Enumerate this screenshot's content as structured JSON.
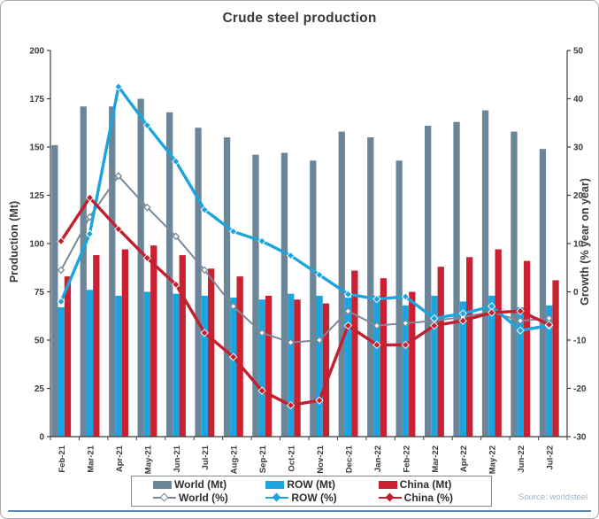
{
  "chart_data": {
    "type": "combo (bar + line)",
    "title": "Crude steel production",
    "source": "Source: worldsteel",
    "grid": false,
    "legend_position": "bottom",
    "categories": [
      "Feb-21",
      "Mar-21",
      "Apr-21",
      "May-21",
      "Jun-21",
      "Jul-21",
      "Aug-21",
      "Sep-21",
      "Oct-21",
      "Nov-21",
      "Dec-21",
      "Jan-22",
      "Feb-22",
      "Mar-22",
      "Apr-22",
      "May-22",
      "Jun-22",
      "Jul-22"
    ],
    "left_axis": {
      "label": "Production (Mt)",
      "min": 0,
      "max": 200,
      "ticks": [
        0,
        25,
        50,
        75,
        100,
        125,
        150,
        175,
        200
      ]
    },
    "right_axis": {
      "label": "Growth (% year on year)",
      "min": -30,
      "max": 50,
      "ticks": [
        -30,
        -20,
        -10,
        0,
        10,
        20,
        30,
        40,
        50
      ]
    },
    "bar_series": [
      {
        "name": "World (Mt)",
        "color": "#6b8698",
        "axis": "left",
        "values": [
          151,
          171,
          171,
          175,
          168,
          160,
          155,
          146,
          147,
          143,
          158,
          155,
          143,
          161,
          163,
          169,
          158,
          149
        ]
      },
      {
        "name": "ROW (Mt)",
        "color": "#1ca4de",
        "axis": "left",
        "values": [
          67,
          76,
          73,
          75,
          74,
          73,
          72,
          71,
          74,
          73,
          72,
          73,
          68,
          73,
          70,
          73,
          67,
          68
        ]
      },
      {
        "name": "China (Mt)",
        "color": "#cb2030",
        "axis": "left",
        "values": [
          83,
          94,
          97,
          99,
          94,
          87,
          83,
          73,
          71,
          69,
          86,
          82,
          75,
          88,
          93,
          97,
          91,
          81
        ]
      }
    ],
    "line_series": [
      {
        "name": "World (%)",
        "color": "#78899a",
        "marker": "open-diamond",
        "stroke_width": 2,
        "axis": "right",
        "values": [
          4.5,
          15.5,
          24,
          17.5,
          11.5,
          4.5,
          -3,
          -8.5,
          -10.5,
          -10,
          -4,
          -7,
          -6.5,
          -6,
          -5.2,
          -4.2,
          -6,
          -5.5
        ]
      },
      {
        "name": "ROW (%)",
        "color": "#1ca4de",
        "marker": "solid-diamond",
        "stroke_width": 3.4,
        "axis": "right",
        "values": [
          -2,
          12,
          42.5,
          34.5,
          27,
          17,
          12.5,
          10.5,
          7.5,
          3.5,
          -0.5,
          -1.5,
          -1,
          -5.5,
          -4.5,
          -3,
          -8,
          -7
        ]
      },
      {
        "name": "China (%)",
        "color": "#c31f2e",
        "marker": "solid-diamond",
        "stroke_width": 3.4,
        "axis": "right",
        "values": [
          10.5,
          19.5,
          13,
          7,
          1.5,
          -8.5,
          -13.5,
          -20.5,
          -23.5,
          -22.5,
          -7,
          -11,
          -11,
          -7,
          -6,
          -4.3,
          -4,
          -6.8
        ]
      }
    ]
  }
}
